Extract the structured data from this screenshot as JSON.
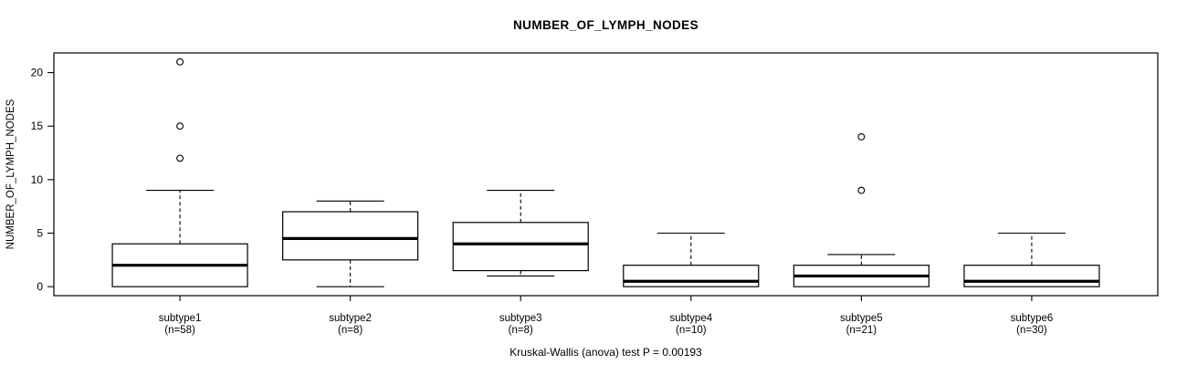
{
  "chart_data": {
    "type": "boxplot",
    "title": "NUMBER_OF_LYMPH_NODES",
    "ylabel": "NUMBER_OF_LYMPH_NODES",
    "xlabel": "",
    "caption": "Kruskal-Wallis (anova) test P = 0.00193",
    "yticks": [
      0,
      5,
      10,
      15,
      20
    ],
    "ylim": [
      0,
      21
    ],
    "grid": false,
    "legend": "none",
    "groups": [
      {
        "label": "subtype1",
        "n_label": "(n=58)",
        "n": 58,
        "whisker_low": 0,
        "q1": 0,
        "median": 2,
        "q3": 4,
        "whisker_high": 9,
        "outliers": [
          12,
          15,
          21
        ]
      },
      {
        "label": "subtype2",
        "n_label": "(n=8)",
        "n": 8,
        "whisker_low": 0,
        "q1": 2.5,
        "median": 4.5,
        "q3": 7,
        "whisker_high": 8,
        "outliers": []
      },
      {
        "label": "subtype3",
        "n_label": "(n=8)",
        "n": 8,
        "whisker_low": 1,
        "q1": 1.5,
        "median": 4,
        "q3": 6,
        "whisker_high": 9,
        "outliers": []
      },
      {
        "label": "subtype4",
        "n_label": "(n=10)",
        "n": 10,
        "whisker_low": 0,
        "q1": 0,
        "median": 0.5,
        "q3": 2,
        "whisker_high": 5,
        "outliers": []
      },
      {
        "label": "subtype5",
        "n_label": "(n=21)",
        "n": 21,
        "whisker_low": 0,
        "q1": 0,
        "median": 1,
        "q3": 2,
        "whisker_high": 3,
        "outliers": [
          9,
          14
        ]
      },
      {
        "label": "subtype6",
        "n_label": "(n=30)",
        "n": 30,
        "whisker_low": 0,
        "q1": 0,
        "median": 0.5,
        "q3": 2,
        "whisker_high": 5,
        "outliers": []
      }
    ],
    "colors": {
      "background": "#ffffff",
      "frame": "#000000",
      "box_border": "#000000",
      "box_fill": "#ffffff",
      "median": "#000000",
      "whisker": "#000000",
      "outlier": "#000000",
      "text": "#000000"
    }
  }
}
